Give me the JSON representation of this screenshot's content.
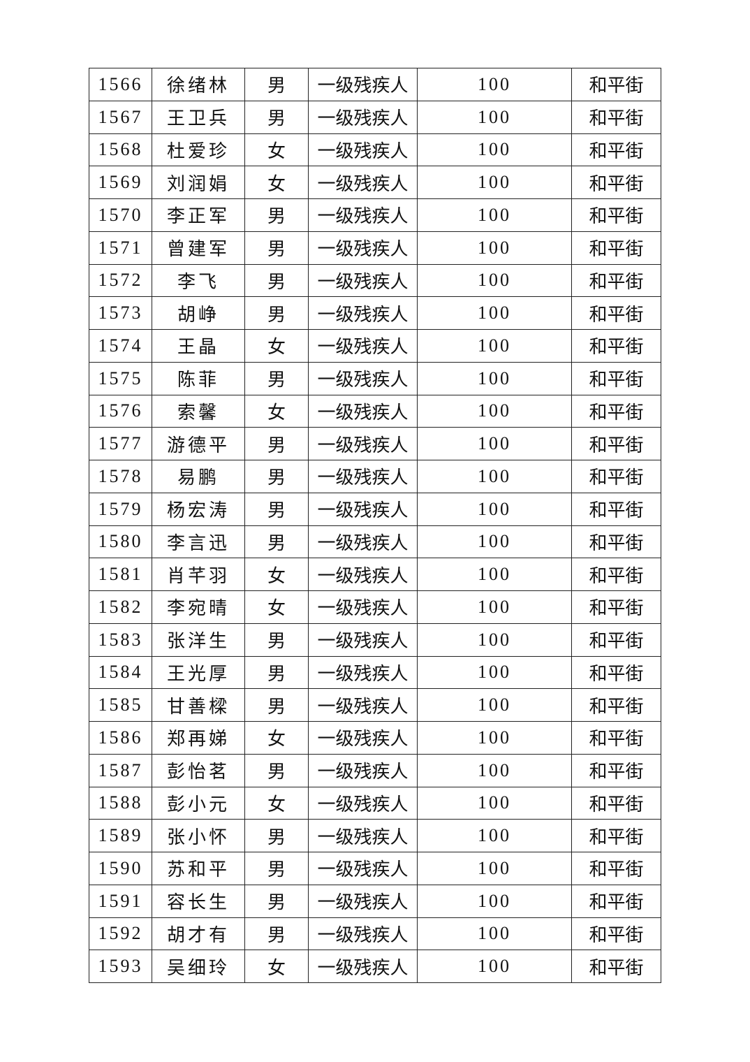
{
  "rows": [
    {
      "no": "1566",
      "name": "徐绪林",
      "gender": "男",
      "category": "一级残疾人",
      "amount": "100",
      "street": "和平街"
    },
    {
      "no": "1567",
      "name": "王卫兵",
      "gender": "男",
      "category": "一级残疾人",
      "amount": "100",
      "street": "和平街"
    },
    {
      "no": "1568",
      "name": "杜爱珍",
      "gender": "女",
      "category": "一级残疾人",
      "amount": "100",
      "street": "和平街"
    },
    {
      "no": "1569",
      "name": "刘润娟",
      "gender": "女",
      "category": "一级残疾人",
      "amount": "100",
      "street": "和平街"
    },
    {
      "no": "1570",
      "name": "李正军",
      "gender": "男",
      "category": "一级残疾人",
      "amount": "100",
      "street": "和平街"
    },
    {
      "no": "1571",
      "name": "曾建军",
      "gender": "男",
      "category": "一级残疾人",
      "amount": "100",
      "street": "和平街"
    },
    {
      "no": "1572",
      "name": "李飞",
      "gender": "男",
      "category": "一级残疾人",
      "amount": "100",
      "street": "和平街"
    },
    {
      "no": "1573",
      "name": "胡峥",
      "gender": "男",
      "category": "一级残疾人",
      "amount": "100",
      "street": "和平街"
    },
    {
      "no": "1574",
      "name": "王晶",
      "gender": "女",
      "category": "一级残疾人",
      "amount": "100",
      "street": "和平街"
    },
    {
      "no": "1575",
      "name": "陈菲",
      "gender": "男",
      "category": "一级残疾人",
      "amount": "100",
      "street": "和平街"
    },
    {
      "no": "1576",
      "name": "索馨",
      "gender": "女",
      "category": "一级残疾人",
      "amount": "100",
      "street": "和平街"
    },
    {
      "no": "1577",
      "name": "游德平",
      "gender": "男",
      "category": "一级残疾人",
      "amount": "100",
      "street": "和平街"
    },
    {
      "no": "1578",
      "name": "易鹏",
      "gender": "男",
      "category": "一级残疾人",
      "amount": "100",
      "street": "和平街"
    },
    {
      "no": "1579",
      "name": "杨宏涛",
      "gender": "男",
      "category": "一级残疾人",
      "amount": "100",
      "street": "和平街"
    },
    {
      "no": "1580",
      "name": "李言迅",
      "gender": "男",
      "category": "一级残疾人",
      "amount": "100",
      "street": "和平街"
    },
    {
      "no": "1581",
      "name": "肖芊羽",
      "gender": "女",
      "category": "一级残疾人",
      "amount": "100",
      "street": "和平街"
    },
    {
      "no": "1582",
      "name": "李宛晴",
      "gender": "女",
      "category": "一级残疾人",
      "amount": "100",
      "street": "和平街"
    },
    {
      "no": "1583",
      "name": "张洋生",
      "gender": "男",
      "category": "一级残疾人",
      "amount": "100",
      "street": "和平街"
    },
    {
      "no": "1584",
      "name": "王光厚",
      "gender": "男",
      "category": "一级残疾人",
      "amount": "100",
      "street": "和平街"
    },
    {
      "no": "1585",
      "name": "甘善樑",
      "gender": "男",
      "category": "一级残疾人",
      "amount": "100",
      "street": "和平街"
    },
    {
      "no": "1586",
      "name": "郑再娣",
      "gender": "女",
      "category": "一级残疾人",
      "amount": "100",
      "street": "和平街"
    },
    {
      "no": "1587",
      "name": "彭怡茗",
      "gender": "男",
      "category": "一级残疾人",
      "amount": "100",
      "street": "和平街"
    },
    {
      "no": "1588",
      "name": "彭小元",
      "gender": "女",
      "category": "一级残疾人",
      "amount": "100",
      "street": "和平街"
    },
    {
      "no": "1589",
      "name": "张小怀",
      "gender": "男",
      "category": "一级残疾人",
      "amount": "100",
      "street": "和平街"
    },
    {
      "no": "1590",
      "name": "苏和平",
      "gender": "男",
      "category": "一级残疾人",
      "amount": "100",
      "street": "和平街"
    },
    {
      "no": "1591",
      "name": "容长生",
      "gender": "男",
      "category": "一级残疾人",
      "amount": "100",
      "street": "和平街"
    },
    {
      "no": "1592",
      "name": "胡才有",
      "gender": "男",
      "category": "一级残疾人",
      "amount": "100",
      "street": "和平街"
    },
    {
      "no": "1593",
      "name": "吴细玲",
      "gender": "女",
      "category": "一级残疾人",
      "amount": "100",
      "street": "和平街"
    }
  ]
}
